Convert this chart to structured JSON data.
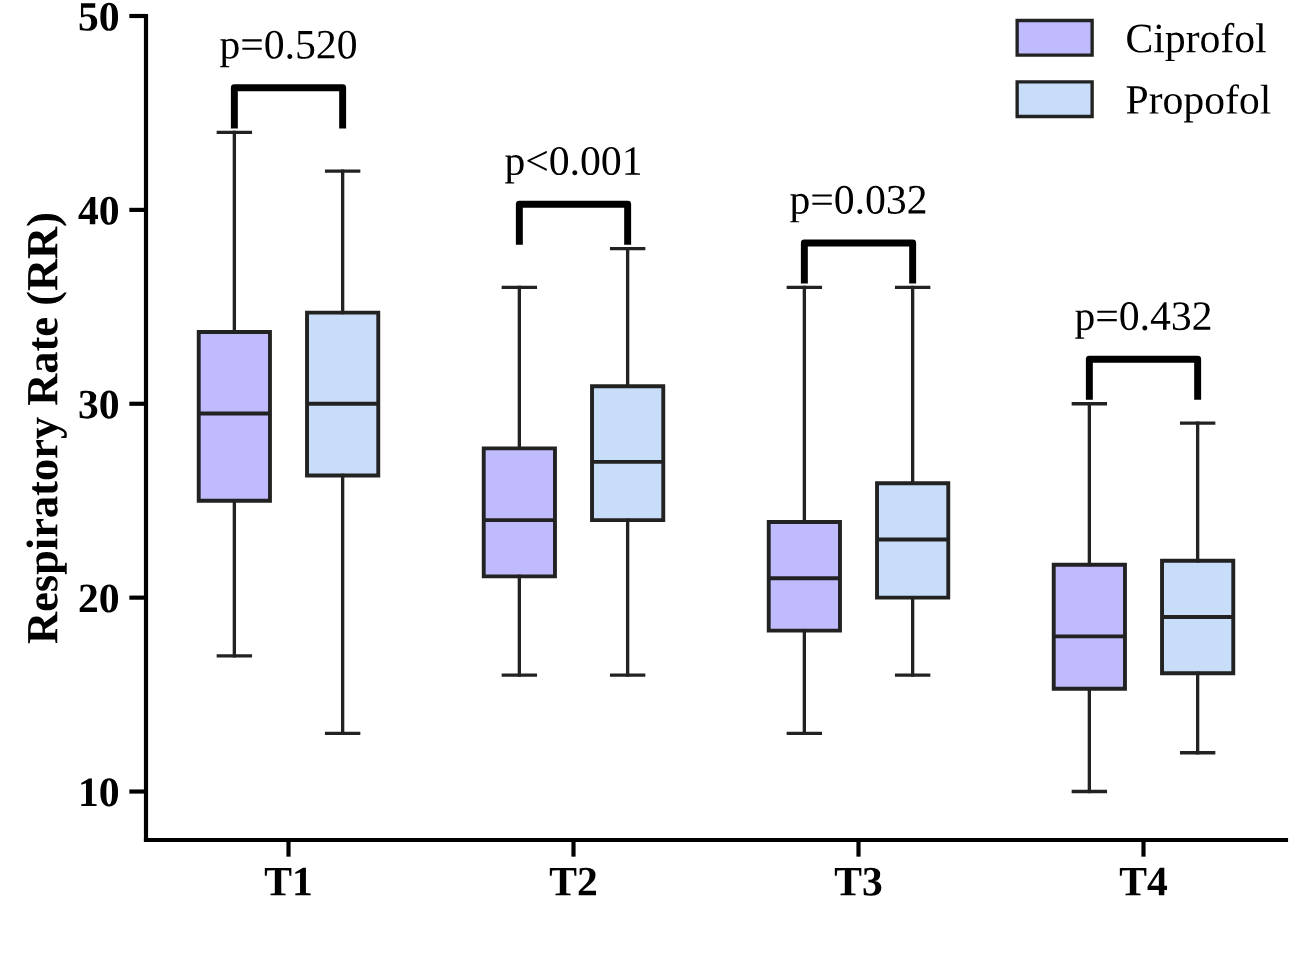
{
  "chart_data": {
    "type": "box",
    "ylabel": "Respiratory Rate (RR)",
    "categories": [
      "T1",
      "T2",
      "T3",
      "T4"
    ],
    "ylim": [
      7.5,
      50
    ],
    "yticks": [
      10,
      20,
      30,
      40,
      50
    ],
    "grid": false,
    "legend": "top right",
    "series": [
      {
        "name": "Ciprofol",
        "color": "#bfbbfd",
        "boxes": [
          {
            "low": 17,
            "q1": 25,
            "median": 29.5,
            "q3": 33.7,
            "high": 44
          },
          {
            "low": 16,
            "q1": 21.1,
            "median": 24,
            "q3": 27.7,
            "high": 36
          },
          {
            "low": 13,
            "q1": 18.3,
            "median": 21,
            "q3": 23.9,
            "high": 36
          },
          {
            "low": 10,
            "q1": 15.3,
            "median": 18,
            "q3": 21.7,
            "high": 30
          }
        ]
      },
      {
        "name": "Propofol",
        "color": "#c8def8",
        "boxes": [
          {
            "low": 13,
            "q1": 26.3,
            "median": 30,
            "q3": 34.7,
            "high": 42
          },
          {
            "low": 16,
            "q1": 24,
            "median": 27,
            "q3": 30.9,
            "high": 38
          },
          {
            "low": 16,
            "q1": 20,
            "median": 23,
            "q3": 25.9,
            "high": 36
          },
          {
            "low": 12,
            "q1": 16.1,
            "median": 19,
            "q3": 21.9,
            "high": 29
          }
        ]
      }
    ],
    "annotations": [
      "p=0.520",
      "p<0.001",
      "p=0.032",
      "p=0.432"
    ]
  }
}
